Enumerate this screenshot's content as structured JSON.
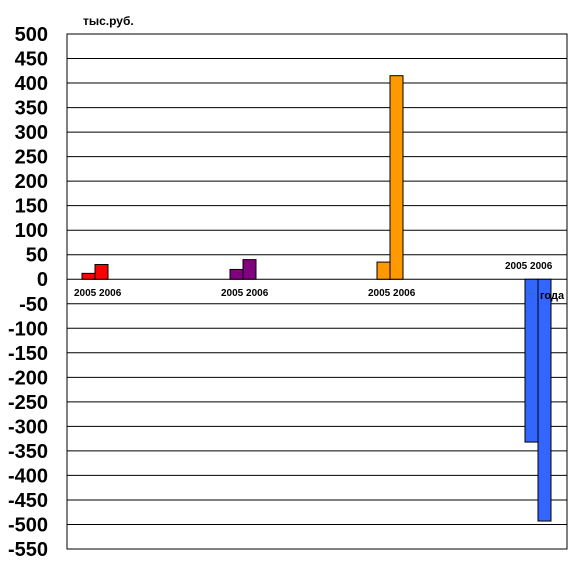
{
  "chart_data": {
    "type": "bar",
    "ylabel": "тыс.руб.",
    "xlabel": "года",
    "ylim": [
      -550,
      500
    ],
    "ytick_step": 50,
    "grid": true,
    "groups": [
      {
        "label": "2005  2006",
        "colors": {
          "a": "#ff0000",
          "b": "#ff0000"
        },
        "values": [
          {
            "year": "2005",
            "value": 12
          },
          {
            "year": "2006",
            "value": 30
          }
        ]
      },
      {
        "label": "2005 2006",
        "colors": {
          "a": "#800080",
          "b": "#800080"
        },
        "values": [
          {
            "year": "2005",
            "value": 20
          },
          {
            "year": "2006",
            "value": 40
          }
        ]
      },
      {
        "label": "2005 2006",
        "colors": {
          "a": "#ff9900",
          "b": "#ff9900"
        },
        "values": [
          {
            "year": "2005",
            "value": 35
          },
          {
            "year": "2006",
            "value": 415
          }
        ]
      },
      {
        "label": "2005 2006",
        "colors": {
          "a": "#3366ff",
          "b": "#3366ff"
        },
        "values": [
          {
            "year": "2005",
            "value": -332
          },
          {
            "year": "2006",
            "value": -493
          }
        ]
      }
    ]
  }
}
